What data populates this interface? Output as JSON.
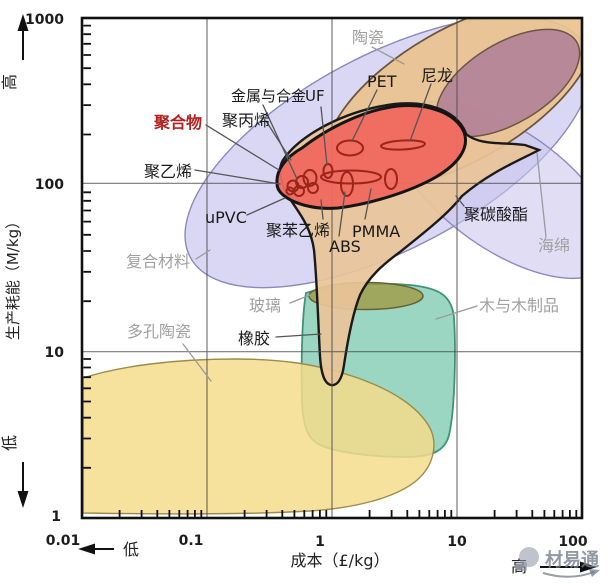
{
  "axis": {
    "y_label": "生产耗能（M/kg）",
    "y_high": "高",
    "y_low": "低",
    "y_ticks": [
      "1000",
      "100",
      "10",
      "1"
    ],
    "x_label": "成本（£/kg）",
    "x_low": "低",
    "x_high": "高",
    "x_ticks": [
      "0.01",
      "0.1",
      "1",
      "10",
      "100"
    ]
  },
  "labels": {
    "polymers": "聚合物",
    "metals": "金属与合金",
    "uf": "UF",
    "pp": "聚丙烯",
    "pe": "聚乙烯",
    "upvc": "uPVC",
    "ps": "聚苯乙烯",
    "abs": "ABS",
    "pmma": "PMMA",
    "pet": "PET",
    "nylon": "尼龙",
    "pc": "聚碳酸酯",
    "rubber": "橡胶",
    "ceramics": "陶瓷",
    "composites": "复合材料",
    "foam": "海绵",
    "glass": "玻璃",
    "wood": "木与木制品",
    "porous_ceramics": "多孔陶瓷"
  },
  "watermark": {
    "text": "材易通"
  },
  "colors": {
    "polymer_core": "#ef695e",
    "polymer_envelope": "#e9c498",
    "ceramics": "#eac28e",
    "metals": "#b28298",
    "composites": "#cbc7ee",
    "wood": "#82ccb4",
    "porous_ceramics": "#f5dc8c",
    "glass": "#a09a45",
    "region_label": "#a0a0a0",
    "polymer_label": "#b51f1f"
  },
  "chart_data": {
    "type": "scatter",
    "title": "",
    "xlabel": "成本（£/kg）",
    "ylabel": "生产耗能（M/kg）",
    "x_scale": "log",
    "y_scale": "log",
    "xlim": [
      0.01,
      100
    ],
    "ylim": [
      1,
      1000
    ],
    "grid": true,
    "regions": [
      {
        "name": "陶瓷",
        "name_en": "ceramics",
        "cost_range": [
          1,
          100
        ],
        "energy_range": [
          100,
          1000
        ],
        "color": "#eac28e"
      },
      {
        "name": "金属与合金",
        "name_en": "metals-and-alloys",
        "cost_range": [
          8,
          90
        ],
        "energy_range": [
          240,
          720
        ],
        "color": "#b28298"
      },
      {
        "name": "复合材料",
        "name_en": "composites",
        "cost_range": [
          0.09,
          95
        ],
        "energy_range": [
          30,
          800
        ],
        "color": "#cbc7ee"
      },
      {
        "name": "聚合物",
        "name_en": "polymers",
        "cost_range": [
          0.36,
          12
        ],
        "energy_range": [
          70,
          300
        ],
        "color": "#ef695e"
      },
      {
        "name": "海绵",
        "name_en": "foams",
        "cost_range": [
          1.5,
          45
        ],
        "energy_range": [
          80,
          260
        ],
        "color": "#cbc7ee"
      },
      {
        "name": "橡胶",
        "name_en": "rubbers",
        "cost_range": [
          0.8,
          12
        ],
        "energy_range": [
          6.5,
          90
        ],
        "color": "#e9c498"
      },
      {
        "name": "玻璃",
        "name_en": "glass",
        "cost_range": [
          0.65,
          5
        ],
        "energy_range": [
          17,
          25
        ],
        "color": "#a09a45"
      },
      {
        "name": "木与木制品",
        "name_en": "wood-and-wood-products",
        "cost_range": [
          0.55,
          9.8
        ],
        "energy_range": [
          2.4,
          24
        ],
        "color": "#82ccb4"
      },
      {
        "name": "多孔陶瓷",
        "name_en": "porous-ceramics",
        "cost_range": [
          0.01,
          6.8
        ],
        "energy_range": [
          1.1,
          9
        ],
        "color": "#f5dc8c"
      }
    ],
    "points": [
      {
        "label": "聚乙烯",
        "cost": 0.5,
        "energy": 100
      },
      {
        "label": "聚丙烯",
        "cost": 0.6,
        "energy": 107
      },
      {
        "label": "uPVC",
        "cost": 0.7,
        "energy": 110
      },
      {
        "label": "聚苯乙烯",
        "cost": 0.9,
        "energy": 107
      },
      {
        "label": "UF",
        "cost": 0.93,
        "energy": 120
      },
      {
        "label": "ABS",
        "cost": 1.3,
        "energy": 100
      },
      {
        "label": "PMMA",
        "cost": 1.4,
        "energy": 110
      },
      {
        "label": "PET",
        "cost": 1.4,
        "energy": 165
      },
      {
        "label": "尼龙",
        "cost": 3.7,
        "energy": 170
      },
      {
        "label": "聚碳酸酯",
        "cost": 10,
        "energy": 85
      }
    ]
  }
}
